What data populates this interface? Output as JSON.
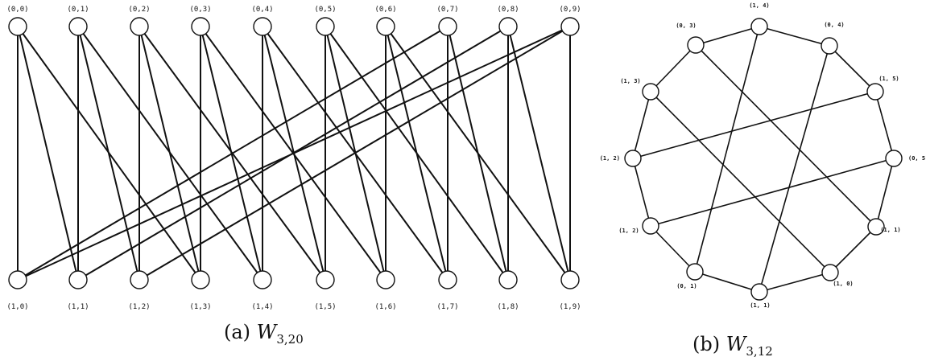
{
  "figure_a": {
    "caption_prefix": "(a) ",
    "caption_var": "W",
    "caption_sub": "3,20",
    "top_labels": [
      "(0,0)",
      "(0,1)",
      "(0,2)",
      "(0,3)",
      "(0,4)",
      "(0,5)",
      "(0,6)",
      "(0,7)",
      "(0,8)",
      "(0,9)"
    ],
    "bottom_labels": [
      "(1,0)",
      "(1,1)",
      "(1,2)",
      "(1,3)",
      "(1,4)",
      "(1,5)",
      "(1,6)",
      "(1,7)",
      "(1,8)",
      "(1,9)"
    ],
    "edges": [
      [
        0,
        0
      ],
      [
        0,
        1
      ],
      [
        0,
        3
      ],
      [
        1,
        1
      ],
      [
        1,
        2
      ],
      [
        1,
        4
      ],
      [
        2,
        2
      ],
      [
        2,
        3
      ],
      [
        2,
        5
      ],
      [
        3,
        3
      ],
      [
        3,
        4
      ],
      [
        3,
        6
      ],
      [
        4,
        4
      ],
      [
        4,
        5
      ],
      [
        4,
        7
      ],
      [
        5,
        5
      ],
      [
        5,
        6
      ],
      [
        5,
        8
      ],
      [
        6,
        6
      ],
      [
        6,
        7
      ],
      [
        6,
        9
      ],
      [
        7,
        7
      ],
      [
        7,
        8
      ],
      [
        7,
        0
      ],
      [
        8,
        8
      ],
      [
        8,
        9
      ],
      [
        8,
        1
      ],
      [
        9,
        9
      ],
      [
        9,
        0
      ],
      [
        9,
        2
      ]
    ]
  },
  "figure_b": {
    "caption_prefix": "(b) ",
    "caption_var": "W",
    "caption_sub": "3,12",
    "vertices": [
      "(1, 4)",
      "(0, 4)",
      "(1, 5)",
      "(0, 5)",
      "(1, 1)",
      "(1, 0)",
      "(1, 1)",
      "(0, 1)",
      "(1, 2)",
      "(1, 2)",
      "(1, 3)",
      "(0, 3)"
    ],
    "edges": [
      [
        0,
        1
      ],
      [
        1,
        2
      ],
      [
        2,
        3
      ],
      [
        3,
        4
      ],
      [
        4,
        5
      ],
      [
        5,
        6
      ],
      [
        6,
        7
      ],
      [
        7,
        8
      ],
      [
        8,
        9
      ],
      [
        9,
        10
      ],
      [
        10,
        11
      ],
      [
        11,
        0
      ],
      [
        0,
        7
      ],
      [
        1,
        6
      ],
      [
        2,
        9
      ],
      [
        3,
        8
      ],
      [
        10,
        5
      ],
      [
        11,
        4
      ]
    ]
  }
}
